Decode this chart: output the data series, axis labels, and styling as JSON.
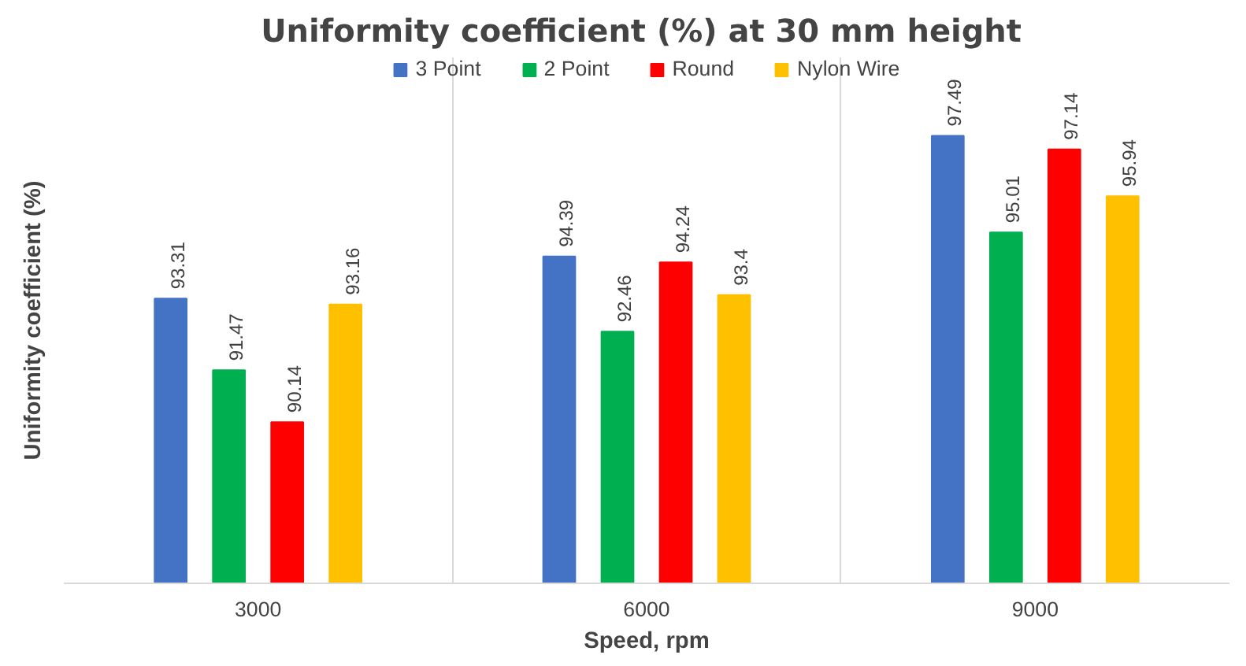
{
  "chart_data": {
    "type": "bar",
    "title": "Uniformity coefficient (%)  at 30 mm height",
    "xlabel": "Speed, rpm",
    "ylabel": "Uniformity coefficient (%)",
    "categories": [
      "3000",
      "6000",
      "9000"
    ],
    "series": [
      {
        "name": "3 Point",
        "color": "#4472c4",
        "values": [
          93.31,
          94.39,
          97.49
        ]
      },
      {
        "name": "2 Point",
        "color": "#00b050",
        "values": [
          91.47,
          92.46,
          95.01
        ]
      },
      {
        "name": "Round",
        "color": "#ff0000",
        "values": [
          90.14,
          94.24,
          97.14
        ]
      },
      {
        "name": "Nylon Wire",
        "color": "#ffc000",
        "values": [
          93.16,
          93.4,
          95.94
        ]
      }
    ],
    "ylim": [
      86,
      99.5
    ],
    "tick_labels": "x",
    "data_labels": true,
    "grid": "x",
    "legend": "top"
  }
}
